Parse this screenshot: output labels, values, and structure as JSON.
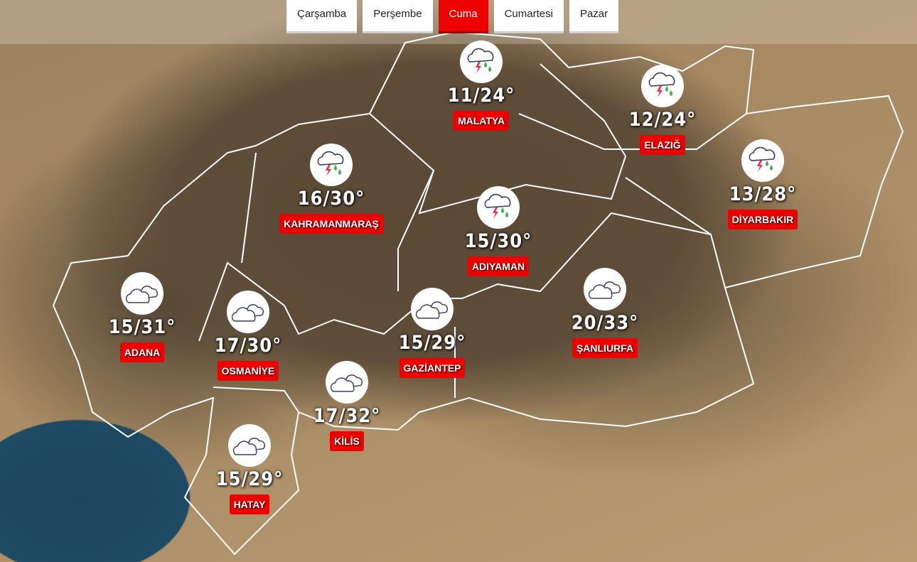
{
  "tabs": [
    {
      "label": "Çarşamba",
      "active": false
    },
    {
      "label": "Perşembe",
      "active": false
    },
    {
      "label": "Cuma",
      "active": true
    },
    {
      "label": "Cumartesi",
      "active": false
    },
    {
      "label": "Pazar",
      "active": false
    }
  ],
  "colors": {
    "accent": "#ee0000",
    "rain_drop": "#3cb44b",
    "lightning": "#e8334a",
    "cloud_outline": "#3a3f5c"
  },
  "cities": [
    {
      "name": "MALATYA",
      "temp": "11/24°",
      "icon": "thunderstorm-icon"
    },
    {
      "name": "ELAZIĞ",
      "temp": "12/24°",
      "icon": "thunderstorm-icon"
    },
    {
      "name": "DİYARBAKIR",
      "temp": "13/28°",
      "icon": "thunderstorm-icon"
    },
    {
      "name": "KAHRAMANMARAŞ",
      "temp": "16/30°",
      "icon": "thunderstorm-icon"
    },
    {
      "name": "ADIYAMAN",
      "temp": "15/30°",
      "icon": "thunderstorm-icon"
    },
    {
      "name": "ADANA",
      "temp": "15/31°",
      "icon": "cloudy-icon"
    },
    {
      "name": "OSMANİYE",
      "temp": "17/30°",
      "icon": "cloudy-icon"
    },
    {
      "name": "GAZİANTEP",
      "temp": "15/29°",
      "icon": "cloudy-icon"
    },
    {
      "name": "ŞANLIURFA",
      "temp": "20/33°",
      "icon": "cloudy-icon"
    },
    {
      "name": "KİLİS",
      "temp": "17/32°",
      "icon": "cloudy-icon"
    },
    {
      "name": "HATAY",
      "temp": "15/29°",
      "icon": "cloudy-icon"
    }
  ]
}
